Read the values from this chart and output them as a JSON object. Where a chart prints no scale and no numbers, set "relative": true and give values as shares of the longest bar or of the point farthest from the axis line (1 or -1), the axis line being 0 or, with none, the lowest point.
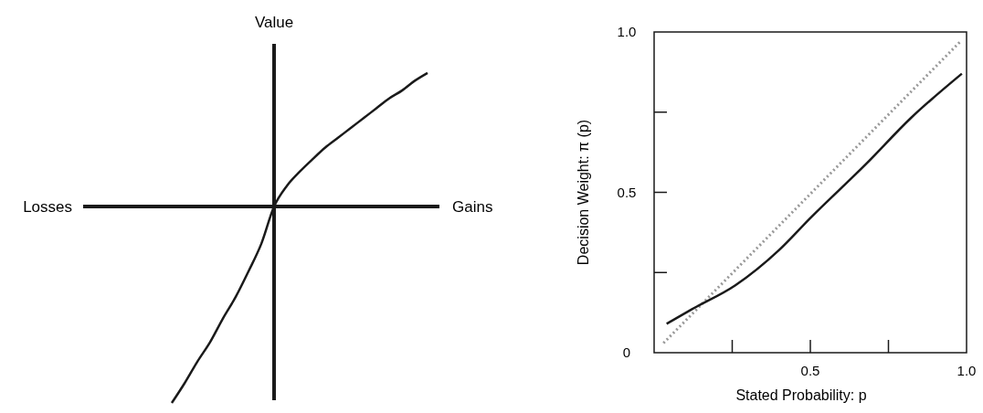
{
  "chart_data": [
    {
      "type": "line",
      "relative": true,
      "ylabel": "Value",
      "annotations": [
        "Losses",
        "Gains"
      ],
      "categories": [
        null,
        null,
        null,
        null,
        null,
        null,
        null,
        null,
        null,
        null,
        null,
        null,
        null,
        null,
        null,
        null,
        null,
        null,
        null,
        null,
        null
      ],
      "series": [
        {
          "color": "#1a1a1a",
          "line_style": "solid",
          "values": [
            -1,
            -0.9,
            -0.79,
            -0.69,
            -0.57,
            -0.46,
            -0.33,
            -0.19,
            0,
            0.105,
            0.177,
            0.24,
            0.3,
            0.35,
            0.4,
            0.45,
            0.5,
            0.55,
            0.59,
            0.64,
            0.68
          ]
        }
      ]
    },
    {
      "type": "line",
      "xlabel": "Stated Probability: p",
      "ylabel": "Decision Weight: π (p)",
      "xlim": [
        0,
        1
      ],
      "ylim": [
        0,
        1
      ],
      "xticks": [
        {
          "value": 0,
          "label": null
        },
        {
          "value": 0.25,
          "label": null
        },
        0.5,
        {
          "value": 0.75,
          "label": null
        },
        {
          "value": 1,
          "label": "1.0"
        }
      ],
      "yticks": [
        0,
        {
          "value": 0.25,
          "label": null
        },
        0.5,
        {
          "value": 0.75,
          "label": null
        },
        {
          "value": 1,
          "label": "1.0"
        }
      ],
      "series": [
        {
          "color": "#999999",
          "line_style": "dotted",
          "x": [
            0.03,
            0.98
          ],
          "values": [
            0.03,
            0.97
          ]
        },
        {
          "color": "#1a1a1a",
          "line_style": "solid",
          "x": [
            0.04,
            0.12,
            0.26,
            0.4,
            0.5,
            0.68,
            0.82,
            0.985
          ],
          "values": [
            0.09,
            0.135,
            0.21,
            0.32,
            0.42,
            0.59,
            0.73,
            0.87
          ]
        }
      ]
    }
  ]
}
